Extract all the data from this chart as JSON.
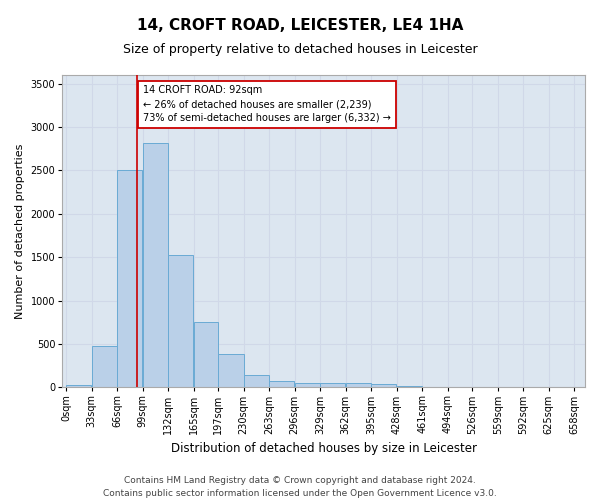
{
  "title": "14, CROFT ROAD, LEICESTER, LE4 1HA",
  "subtitle": "Size of property relative to detached houses in Leicester",
  "xlabel": "Distribution of detached houses by size in Leicester",
  "ylabel": "Number of detached properties",
  "footer_line1": "Contains HM Land Registry data © Crown copyright and database right 2024.",
  "footer_line2": "Contains public sector information licensed under the Open Government Licence v3.0.",
  "bar_edges": [
    0,
    33,
    66,
    99,
    132,
    165,
    197,
    230,
    263,
    296,
    329,
    362,
    395,
    428,
    461,
    494,
    526,
    559,
    592,
    625,
    658
  ],
  "bar_heights": [
    25,
    480,
    2510,
    2820,
    1520,
    750,
    390,
    145,
    75,
    55,
    55,
    55,
    35,
    20,
    0,
    0,
    0,
    0,
    0,
    0
  ],
  "bar_color": "#bad0e8",
  "bar_edge_color": "#6aaad4",
  "property_size": 92,
  "red_line_color": "#cc0000",
  "annotation_text": "14 CROFT ROAD: 92sqm\n← 26% of detached houses are smaller (2,239)\n73% of semi-detached houses are larger (6,332) →",
  "annotation_box_color": "#ffffff",
  "annotation_box_edge": "#cc0000",
  "ylim": [
    0,
    3600
  ],
  "yticks": [
    0,
    500,
    1000,
    1500,
    2000,
    2500,
    3000,
    3500
  ],
  "tick_labels": [
    "0sqm",
    "33sqm",
    "66sqm",
    "99sqm",
    "132sqm",
    "165sqm",
    "197sqm",
    "230sqm",
    "263sqm",
    "296sqm",
    "329sqm",
    "362sqm",
    "395sqm",
    "428sqm",
    "461sqm",
    "494sqm",
    "526sqm",
    "559sqm",
    "592sqm",
    "625sqm",
    "658sqm"
  ],
  "grid_color": "#d0d8e8",
  "bg_color": "#dce6f0",
  "title_fontsize": 11,
  "subtitle_fontsize": 9,
  "axis_label_fontsize": 8,
  "tick_fontsize": 7,
  "annotation_fontsize": 7,
  "footer_fontsize": 6.5
}
